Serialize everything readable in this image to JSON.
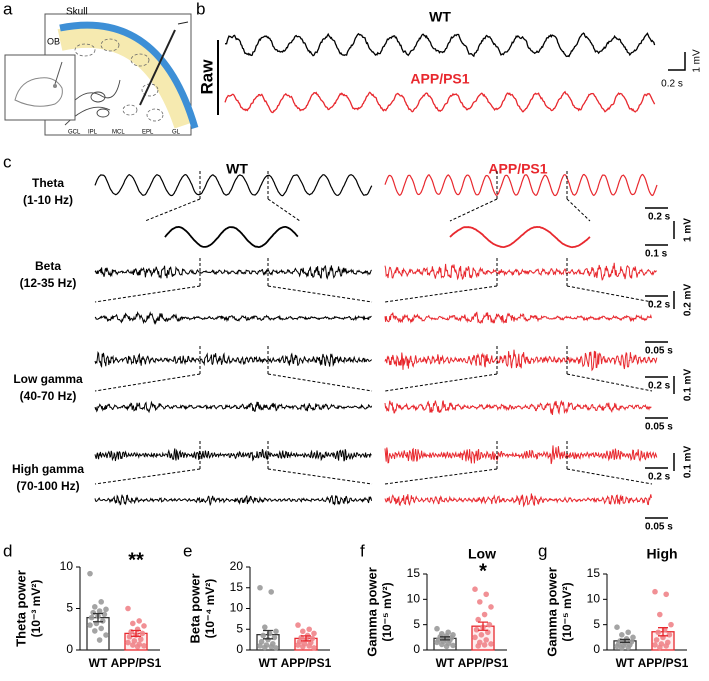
{
  "panel_labels": [
    "a",
    "b",
    "c",
    "d",
    "e",
    "f",
    "g"
  ],
  "schematic": {
    "labels": [
      "Skull",
      "OB",
      "GCL",
      "IPL",
      "MCL",
      "EPL",
      "GL"
    ]
  },
  "raw": {
    "label": "Raw",
    "groups": [
      "WT",
      "APP/PS1"
    ],
    "scale_bars": [
      "1 mV",
      "0.2 s"
    ]
  },
  "filtered": {
    "groups": [
      "WT",
      "APP/PS1"
    ],
    "bands": [
      {
        "name": "Theta",
        "range": "(1-10 Hz)",
        "time_bars": [
          "0.2 s",
          "0.1 s"
        ],
        "amp_bar": "1 mV"
      },
      {
        "name": "Beta",
        "range": "(12-35 Hz)",
        "time_bars": [
          "0.2 s",
          "0.05 s"
        ],
        "amp_bar": "0.2 mV"
      },
      {
        "name": "Low gamma",
        "range": "(40-70 Hz)",
        "time_bars": [
          "0.2 s",
          "0.05 s"
        ],
        "amp_bar": "0.1 mV"
      },
      {
        "name": "High gamma",
        "range": "(70-100 Hz)",
        "time_bars": [
          "0.2 s",
          "0.05 s"
        ],
        "amp_bar": "0.1 mV"
      }
    ]
  },
  "chart_data": [
    {
      "type": "bar",
      "ylabel": "Theta power",
      "yunit": "(10⁻³ mV²)",
      "annotation": "**",
      "categories": [
        "WT",
        "APP/PS1"
      ],
      "values": [
        3.9,
        2.0
      ],
      "errors": [
        0.5,
        0.35
      ],
      "edge_colors": [
        "#333333",
        "#e8282e"
      ],
      "point_colors": [
        "#9a9a9a",
        "#f0848a"
      ],
      "points": [
        [
          9.2,
          5.8,
          5.2,
          4.9,
          4.7,
          4.5,
          4.3,
          4.1,
          3.9,
          3.5,
          3.2,
          3.0,
          2.6,
          2.3,
          1.8,
          1.2
        ],
        [
          5.0,
          3.5,
          3.2,
          2.9,
          2.5,
          2.2,
          2.0,
          1.8,
          1.6,
          1.3,
          1.1,
          0.9,
          0.7,
          0.6,
          0.5,
          0.4
        ]
      ],
      "ylim": [
        0,
        10
      ],
      "yticks": [
        0,
        5,
        10
      ]
    },
    {
      "type": "bar",
      "ylabel": "Beta power",
      "yunit": "(10⁻⁴ mV²)",
      "categories": [
        "WT",
        "APP/PS1"
      ],
      "values": [
        3.7,
        2.8
      ],
      "errors": [
        1.0,
        0.6
      ],
      "edge_colors": [
        "#333333",
        "#e8282e"
      ],
      "point_colors": [
        "#9a9a9a",
        "#f0848a"
      ],
      "points": [
        [
          15,
          14,
          5.5,
          4.5,
          4,
          3.5,
          3,
          2.5,
          2,
          1.5,
          1.2,
          1,
          0.8,
          0.6,
          0.5
        ],
        [
          6,
          5,
          4.5,
          4,
          3.5,
          3,
          2.8,
          2.5,
          2,
          1.8,
          1.5,
          1.2,
          1,
          0.8,
          0.5
        ]
      ],
      "ylim": [
        0,
        20
      ],
      "yticks": [
        0,
        5,
        10,
        15,
        20
      ]
    },
    {
      "type": "bar",
      "title": "Low",
      "ylabel": "Gamma power",
      "yunit": "(10⁻⁵ mV²)",
      "annotation": "*",
      "categories": [
        "WT",
        "APP/PS1"
      ],
      "values": [
        2.3,
        4.7
      ],
      "errors": [
        0.3,
        0.8
      ],
      "edge_colors": [
        "#333333",
        "#e8282e"
      ],
      "point_colors": [
        "#9a9a9a",
        "#f0848a"
      ],
      "points": [
        [
          4.2,
          3.5,
          3.2,
          3.0,
          2.8,
          2.6,
          2.4,
          2.2,
          2.0,
          1.9,
          1.7,
          1.5,
          1.3,
          1.1,
          0.9,
          0.7
        ],
        [
          12,
          11,
          9.5,
          8.5,
          7,
          6,
          5,
          4.5,
          4,
          3.5,
          3,
          2.5,
          2,
          1.5,
          1.2,
          1.0,
          0.8
        ]
      ],
      "ylim": [
        0,
        15
      ],
      "yticks": [
        0,
        5,
        10,
        15
      ]
    },
    {
      "type": "bar",
      "title": "High",
      "ylabel": "Gamma power",
      "yunit": "(10⁻⁵ mV²)",
      "categories": [
        "WT",
        "APP/PS1"
      ],
      "values": [
        1.8,
        3.6
      ],
      "errors": [
        0.3,
        0.8
      ],
      "edge_colors": [
        "#333333",
        "#e8282e"
      ],
      "point_colors": [
        "#9a9a9a",
        "#f0848a"
      ],
      "points": [
        [
          4.5,
          3.5,
          3.0,
          2.5,
          2.2,
          1.8,
          1.6,
          1.4,
          1.2,
          1.0,
          0.9,
          0.7,
          0.5,
          0.4
        ],
        [
          11.5,
          11,
          7,
          5,
          4,
          3.5,
          3,
          2.5,
          2,
          1.5,
          1.2,
          1,
          0.8,
          0.5
        ]
      ],
      "ylim": [
        0,
        15
      ],
      "yticks": [
        0,
        5,
        10,
        15
      ]
    }
  ]
}
